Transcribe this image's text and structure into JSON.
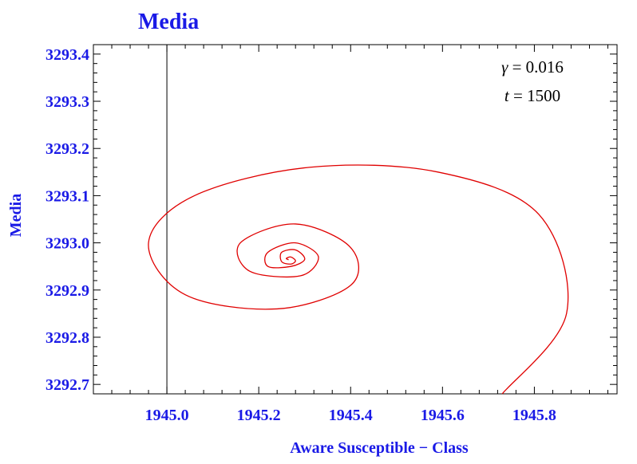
{
  "chart_data": {
    "type": "line",
    "title": "Media",
    "xlabel": "Aware Susceptible − Class",
    "ylabel": "Media",
    "xlim": [
      1944.84,
      1945.98
    ],
    "ylim": [
      3292.68,
      3293.42
    ],
    "x_ticks": [
      1945.0,
      1945.2,
      1945.4,
      1945.6,
      1945.8
    ],
    "x_tick_labels": [
      "1945.0",
      "1945.2",
      "1945.4",
      "1945.6",
      "1945.8"
    ],
    "y_ticks": [
      3292.7,
      3292.8,
      3292.9,
      3293.0,
      3293.1,
      3293.2,
      3293.3,
      3293.4
    ],
    "y_tick_labels": [
      "3292.7",
      "3292.8",
      "3292.9",
      "3293.0",
      "3293.1",
      "3293.2",
      "3293.3",
      "3293.4"
    ],
    "reference_line": {
      "axis": "x",
      "value": 1945.0
    },
    "annotations": [
      {
        "symbol": "γ",
        "rest": " = 0.016"
      },
      {
        "symbol": "t",
        "rest": " = 1500"
      }
    ],
    "grid": false,
    "series": [
      {
        "color": "#e00000",
        "x": [
          1945.73,
          1945.87,
          1945.81,
          1945.59,
          1945.31,
          1945.06,
          1944.96,
          1945.04,
          1945.24,
          1945.4,
          1945.4,
          1945.28,
          1945.16,
          1945.18,
          1945.29,
          1945.33,
          1945.28,
          1945.22,
          1945.22,
          1945.27,
          1945.3,
          1945.28,
          1945.25,
          1945.25,
          1945.27,
          1945.28,
          1945.27,
          1945.26,
          1945.265
        ],
        "y": [
          3292.68,
          3292.85,
          3293.06,
          3293.15,
          3293.16,
          3293.1,
          3293.0,
          3292.89,
          3292.86,
          3292.91,
          3292.99,
          3293.04,
          3293.0,
          3292.94,
          3292.93,
          3292.97,
          3293.0,
          3292.98,
          3292.95,
          3292.95,
          3292.965,
          3292.985,
          3292.98,
          3292.96,
          3292.955,
          3292.962,
          3292.97,
          3292.967,
          3292.964
        ]
      }
    ]
  }
}
